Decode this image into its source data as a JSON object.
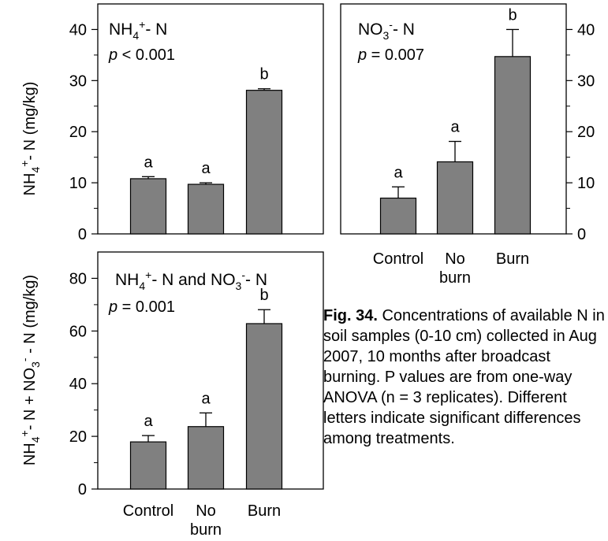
{
  "chart_data": [
    {
      "type": "bar",
      "panel_title": "NH4+- N",
      "p_value": "p < 0.001",
      "ylabel": "NH4+- N (mg/kg)",
      "y_ticks": [
        "0",
        "10",
        "20",
        "30",
        "40"
      ],
      "ylim": [
        0,
        45
      ],
      "y_axis_side": "left",
      "categories": [
        "Control",
        "No burn",
        "Burn"
      ],
      "values": [
        10.8,
        9.7,
        28.1
      ],
      "errors": [
        0.4,
        0.3,
        0.3
      ],
      "letters": [
        "a",
        "a",
        "b"
      ],
      "bar_color": "#808080"
    },
    {
      "type": "bar",
      "panel_title": "NO3-- N",
      "p_value": "p = 0.007",
      "ylabel": "",
      "y_ticks": [
        "0",
        "10",
        "20",
        "30",
        "40"
      ],
      "ylim": [
        0,
        45
      ],
      "y_axis_side": "right",
      "categories": [
        "Control",
        "No burn",
        "Burn"
      ],
      "values": [
        7.0,
        14.1,
        34.7
      ],
      "errors": [
        2.2,
        4.0,
        5.3
      ],
      "letters": [
        "a",
        "a",
        "b"
      ],
      "bar_color": "#808080"
    },
    {
      "type": "bar",
      "panel_title": "NH4+- N and NO3-- N",
      "p_value": "p = 0.001",
      "ylabel": "NH4+- N + NO3-- N (mg/kg)",
      "y_ticks": [
        "0",
        "20",
        "40",
        "60",
        "80"
      ],
      "ylim": [
        0,
        90
      ],
      "y_axis_side": "left",
      "categories": [
        "Control",
        "No burn",
        "Burn"
      ],
      "values": [
        17.9,
        23.7,
        62.8
      ],
      "errors": [
        2.4,
        5.2,
        5.3
      ],
      "letters": [
        "a",
        "a",
        "b"
      ],
      "bar_color": "#808080"
    }
  ],
  "caption": {
    "label": "Fig. 34.",
    "text": "Concentrations of available N in soil samples (0-10 cm) collected in Aug 2007, 10 months after broadcast burning. P values are from one-way ANOVA (n = 3 replicates). Different letters indicate significant differences among treatments."
  }
}
